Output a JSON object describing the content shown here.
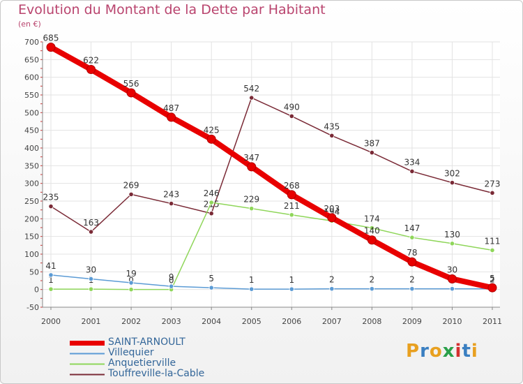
{
  "header": {
    "title": "Evolution du Montant de la Dette par Habitant",
    "subtitle": "(en €)"
  },
  "logo": {
    "letters": [
      "P",
      "r",
      "o",
      "x",
      "i",
      "t",
      "i"
    ],
    "colors": [
      "#e8a020",
      "#3a7fc1",
      "#e8a020",
      "#2aa04a",
      "#d43030",
      "#3a7fc1",
      "#e8a020"
    ]
  },
  "chart_data": {
    "type": "line",
    "x": [
      "2000",
      "2001",
      "2002",
      "2003",
      "2004",
      "2005",
      "2006",
      "2007",
      "2008",
      "2009",
      "2010",
      "2011"
    ],
    "ylim": [
      -50,
      700
    ],
    "yticks": [
      -50,
      0,
      50,
      100,
      150,
      200,
      250,
      300,
      350,
      400,
      450,
      500,
      550,
      600,
      650,
      700
    ],
    "grid": true,
    "legend_position": "bottom-left",
    "series": [
      {
        "name": "SAINT-ARNOULT",
        "color": "#e80000",
        "values": [
          685,
          622,
          556,
          487,
          425,
          347,
          268,
          203,
          140,
          78,
          30,
          5
        ],
        "labels": [
          "685",
          "622",
          "556",
          "487",
          "425",
          "347",
          "268",
          "203",
          "140",
          "78",
          "30",
          "5"
        ]
      },
      {
        "name": "Villequier",
        "color": "#5b9bd5",
        "values": [
          41,
          30,
          19,
          9,
          5,
          1,
          1,
          2,
          2,
          2,
          2,
          2
        ],
        "labels": [
          "41",
          "30",
          "19",
          "9",
          "5",
          "1",
          "1",
          "2",
          "2",
          "2",
          "2",
          "2"
        ]
      },
      {
        "name": "Anquetierville",
        "color": "#8fd65a",
        "values": [
          1,
          1,
          0,
          0,
          246,
          229,
          211,
          194,
          174,
          147,
          130,
          111
        ],
        "labels": [
          "1",
          "1",
          "0",
          "0",
          "246",
          "229",
          "211",
          "194",
          "174",
          "147",
          "130",
          "111"
        ]
      },
      {
        "name": "Touffreville-la-Cable",
        "color": "#7a2a36",
        "values": [
          235,
          163,
          269,
          243,
          215,
          542,
          490,
          435,
          387,
          334,
          302,
          273
        ],
        "labels": [
          "235",
          "163",
          "269",
          "243",
          "215",
          "542",
          "490",
          "435",
          "387",
          "334",
          "302",
          "273"
        ]
      }
    ]
  }
}
